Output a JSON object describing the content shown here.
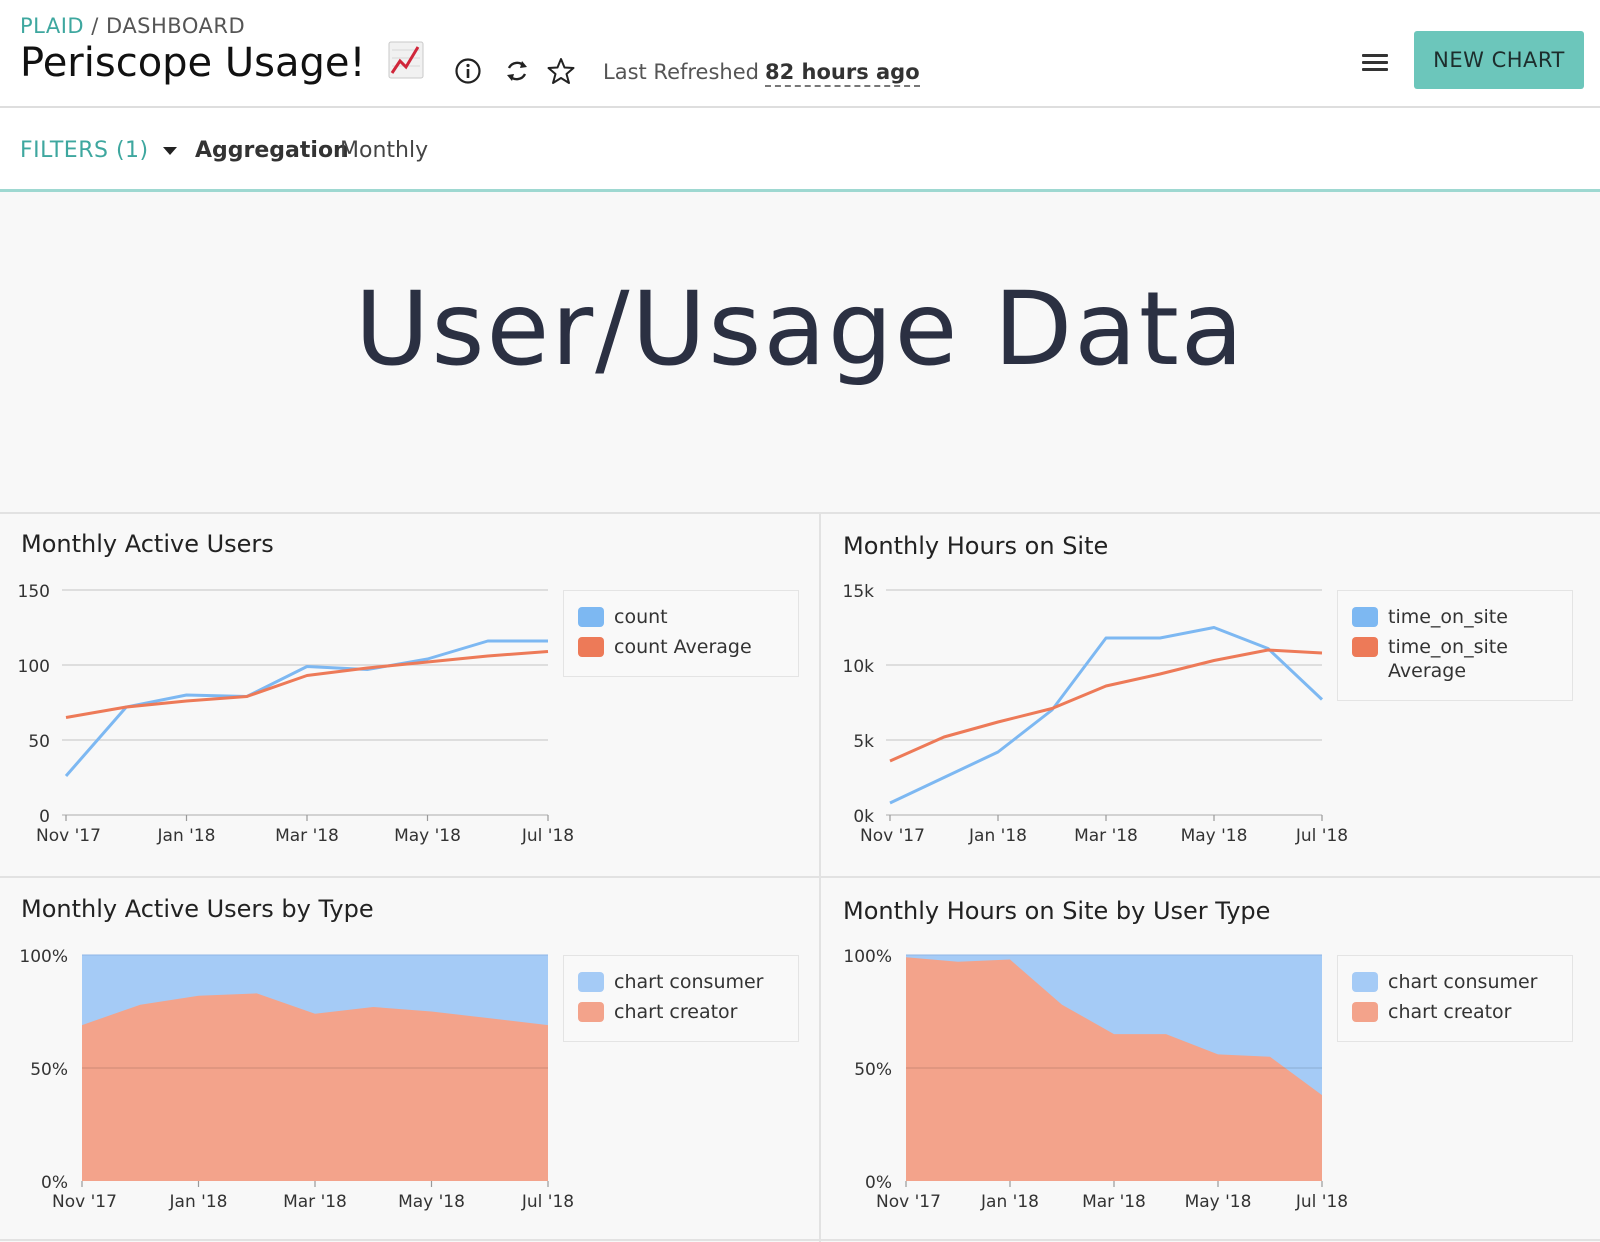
{
  "header": {
    "org": "PLAID",
    "sep": " / ",
    "section": "DASHBOARD",
    "title": "Periscope Usage!",
    "refresh_label": "Last Refreshed",
    "refresh_ago": "82 hours ago",
    "new_chart_label": "NEW CHART",
    "icons": [
      "info-icon",
      "refresh-icon",
      "star-icon",
      "menu-icon",
      "chart-increasing-emoji"
    ]
  },
  "filterbar": {
    "filters_label": "FILTERS (1)",
    "aggregation_label": "Aggregation",
    "aggregation_value": "Monthly"
  },
  "main_title": "User/Usage Data",
  "panels": {
    "p1": {
      "title": "Monthly Active Users",
      "legend": [
        "count",
        "count Average"
      ]
    },
    "p2": {
      "title": "Monthly Hours on Site",
      "legend": [
        "time_on_site",
        "time_on_site Average"
      ]
    },
    "p3": {
      "title": "Monthly Active Users by Type",
      "legend": [
        "chart consumer",
        "chart creator"
      ]
    },
    "p4": {
      "title": "Monthly Hours on Site by User Type",
      "legend": [
        "chart consumer",
        "chart creator"
      ]
    }
  },
  "colors": {
    "accent": "#3ea79f",
    "button": "#6cc6bb",
    "line_blue": "#7db8f2",
    "line_orange": "#ed7a58",
    "area_blue": "#a5cbf6",
    "area_orange": "#f3a38b"
  },
  "chart_data": [
    {
      "type": "line",
      "title": "Monthly Active Users",
      "x": [
        "2017-11",
        "2017-12",
        "2018-01",
        "2018-02",
        "2018-03",
        "2018-04",
        "2018-05",
        "2018-06",
        "2018-07"
      ],
      "x_ticks": [
        "Nov '17",
        "Jan '18",
        "Mar '18",
        "May '18",
        "Jul '18"
      ],
      "y_ticks": [
        "0",
        "50",
        "100",
        "150"
      ],
      "ylim": [
        0,
        150
      ],
      "series": [
        {
          "name": "count",
          "values": [
            26,
            72,
            80,
            79,
            99,
            97,
            104,
            116,
            116
          ]
        },
        {
          "name": "count Average",
          "values": [
            65,
            72,
            76,
            79,
            93,
            98,
            102,
            106,
            109
          ]
        }
      ],
      "legend": "right"
    },
    {
      "type": "line",
      "title": "Monthly Hours on Site",
      "x": [
        "2017-11",
        "2017-12",
        "2018-01",
        "2018-02",
        "2018-03",
        "2018-04",
        "2018-05",
        "2018-06",
        "2018-07"
      ],
      "x_ticks": [
        "Nov '17",
        "Jan '18",
        "Mar '18",
        "May '18",
        "Jul '18"
      ],
      "y_ticks": [
        "0k",
        "5k",
        "10k",
        "15k"
      ],
      "ylim": [
        0,
        15000
      ],
      "series": [
        {
          "name": "time_on_site",
          "values": [
            800,
            2500,
            4200,
            7000,
            11800,
            11800,
            12500,
            11100,
            7700
          ]
        },
        {
          "name": "time_on_site Average",
          "values": [
            3600,
            5200,
            6200,
            7100,
            8600,
            9400,
            10300,
            11000,
            10800
          ]
        }
      ],
      "legend": "right"
    },
    {
      "type": "area",
      "title": "Monthly Active Users by Type",
      "x": [
        "2017-11",
        "2017-12",
        "2018-01",
        "2018-02",
        "2018-03",
        "2018-04",
        "2018-05",
        "2018-06",
        "2018-07"
      ],
      "x_ticks": [
        "Nov '17",
        "Jan '18",
        "Mar '18",
        "May '18",
        "Jul '18"
      ],
      "y_ticks": [
        "0%",
        "50%",
        "100%"
      ],
      "ylim": [
        0,
        100
      ],
      "stacked_percent": true,
      "series": [
        {
          "name": "chart creator",
          "values": [
            69,
            78,
            82,
            83,
            74,
            77,
            75,
            72,
            69
          ]
        },
        {
          "name": "chart consumer",
          "values": [
            31,
            22,
            18,
            17,
            26,
            23,
            25,
            28,
            31
          ]
        }
      ],
      "legend": "right"
    },
    {
      "type": "area",
      "title": "Monthly Hours on Site by User Type",
      "x": [
        "2017-11",
        "2017-12",
        "2018-01",
        "2018-02",
        "2018-03",
        "2018-04",
        "2018-05",
        "2018-06",
        "2018-07"
      ],
      "x_ticks": [
        "Nov '17",
        "Jan '18",
        "Mar '18",
        "May '18",
        "Jul '18"
      ],
      "y_ticks": [
        "0%",
        "50%",
        "100%"
      ],
      "ylim": [
        0,
        100
      ],
      "stacked_percent": true,
      "series": [
        {
          "name": "chart creator",
          "values": [
            99,
            97,
            98,
            78,
            65,
            65,
            56,
            55,
            38
          ]
        },
        {
          "name": "chart consumer",
          "values": [
            1,
            3,
            2,
            22,
            35,
            35,
            44,
            45,
            62
          ]
        }
      ],
      "legend": "right"
    }
  ]
}
